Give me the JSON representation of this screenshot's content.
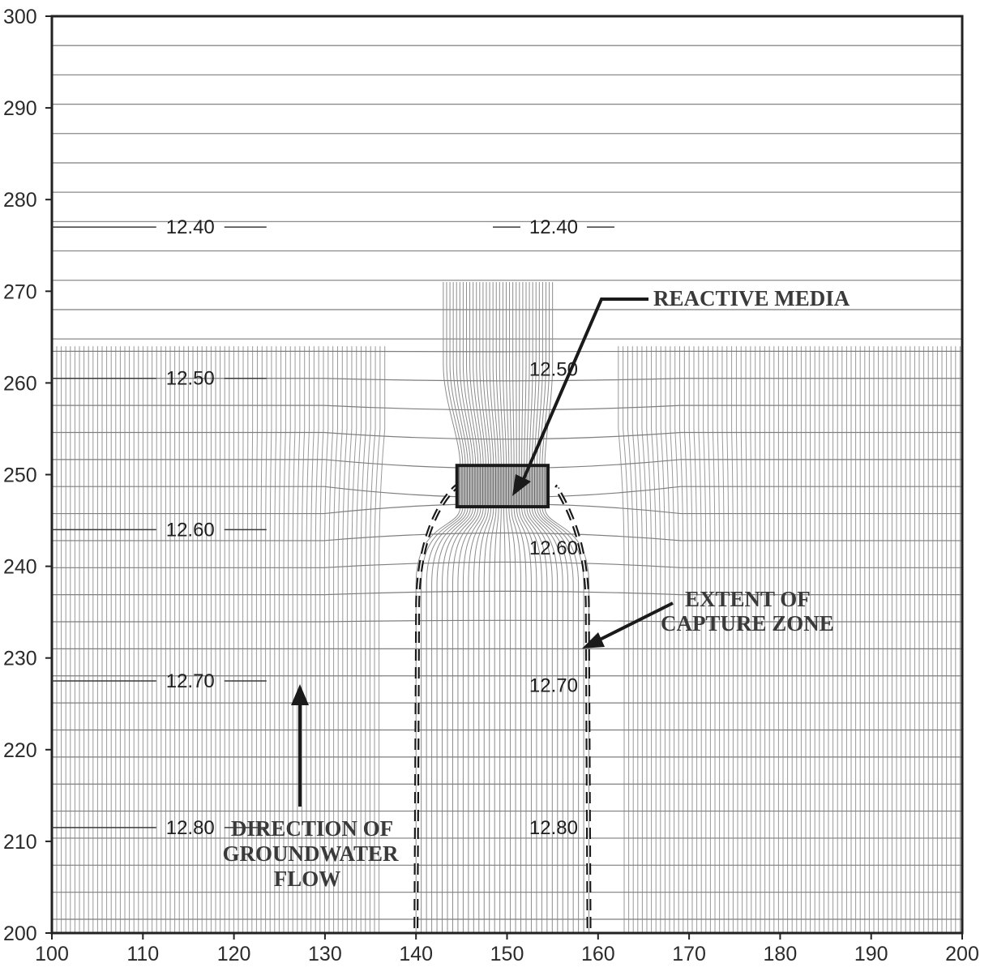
{
  "axes": {
    "x_ticks": [
      "100",
      "110",
      "120",
      "130",
      "140",
      "150",
      "160",
      "170",
      "180",
      "190",
      "200"
    ],
    "y_ticks": [
      "300",
      "290",
      "280",
      "270",
      "260",
      "250",
      "240",
      "230",
      "220",
      "210",
      "200"
    ],
    "x_range": [
      100,
      200
    ],
    "y_range": [
      200,
      300
    ]
  },
  "contours": [
    {
      "value": "12.40",
      "x": 112,
      "y": 277,
      "x2": 152,
      "y2": 277
    },
    {
      "value": "12.50",
      "x": 112,
      "y": 260.5,
      "x2": 152,
      "y2": 261.5
    },
    {
      "value": "12.60",
      "x": 112,
      "y": 244,
      "x2": 152,
      "y2": 242
    },
    {
      "value": "12.70",
      "x": 112,
      "y": 227.5,
      "x2": 152,
      "y2": 227
    },
    {
      "value": "12.80",
      "x": 112,
      "y": 211.5,
      "x2": 152,
      "y2": 211.5
    }
  ],
  "annotations": {
    "reactive_media": "REACTIVE MEDIA",
    "capture_zone_line1": "EXTENT OF",
    "capture_zone_line2": "CAPTURE ZONE",
    "flow_line1": "DIRECTION OF",
    "flow_line2": "GROUNDWATER",
    "flow_line3": "FLOW"
  },
  "reactive_media_box": {
    "x": [
      144.5,
      154.5
    ],
    "y": [
      246.5,
      251
    ]
  },
  "capture_zone": {
    "left_x_at_bottom": 140,
    "right_x_at_bottom": 159,
    "top_y": 248.5
  }
}
